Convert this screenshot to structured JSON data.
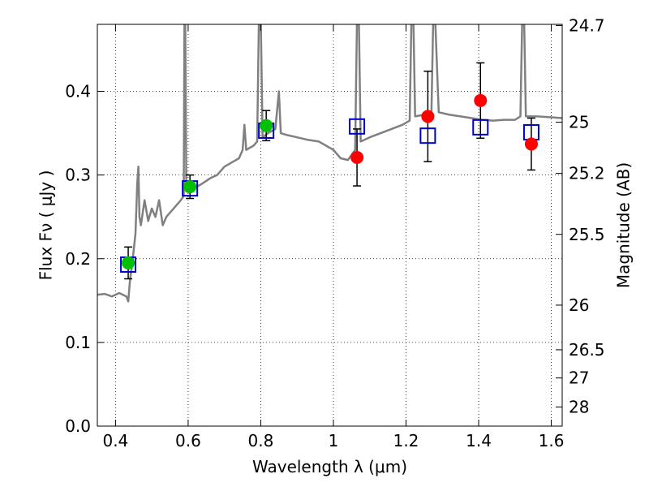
{
  "chart_data": {
    "type": "scatter",
    "x_axis": {
      "label": "Wavelength  λ (μm)",
      "range": [
        0.35,
        1.63
      ],
      "ticks": [
        0.4,
        0.6,
        0.8,
        1.0,
        1.2,
        1.4,
        1.6
      ],
      "tick_labels": [
        "0.4",
        "0.6",
        "0.8",
        "1",
        "1.2",
        "1.4",
        "1.6"
      ]
    },
    "y_axis_left": {
      "label": "Flux  Fν  ( μJy )",
      "range": [
        0.0,
        0.48
      ],
      "ticks": [
        0.0,
        0.1,
        0.2,
        0.3,
        0.4
      ],
      "tick_labels": [
        "0.0",
        "0.1",
        "0.2",
        "0.3",
        "0.4"
      ]
    },
    "y_axis_right": {
      "label": "Magnitude (AB)",
      "ticks": [
        24.7,
        25,
        25.2,
        25.5,
        26,
        26.5,
        27,
        28
      ],
      "tick_labels": [
        "24.7",
        "25",
        "25.2",
        "25.5",
        "26",
        "26.5",
        "27",
        "28"
      ]
    },
    "grid": true,
    "colors": {
      "spectrum": "#808080",
      "optical_points": "#00c000",
      "nir_points": "#ff0000",
      "model_squares": "#0000cc",
      "error_bars": "#000000"
    },
    "series": [
      {
        "style": "line",
        "points": [
          [
            0.35,
            0.157
          ],
          [
            0.37,
            0.158
          ],
          [
            0.39,
            0.155
          ],
          [
            0.41,
            0.159
          ],
          [
            0.43,
            0.155
          ],
          [
            0.435,
            0.149
          ],
          [
            0.44,
            0.175
          ],
          [
            0.445,
            0.19
          ],
          [
            0.45,
            0.21
          ],
          [
            0.455,
            0.23
          ],
          [
            0.46,
            0.29
          ],
          [
            0.463,
            0.31
          ],
          [
            0.466,
            0.25
          ],
          [
            0.47,
            0.24
          ],
          [
            0.48,
            0.27
          ],
          [
            0.49,
            0.245
          ],
          [
            0.5,
            0.26
          ],
          [
            0.51,
            0.25
          ],
          [
            0.52,
            0.27
          ],
          [
            0.53,
            0.24
          ],
          [
            0.54,
            0.25
          ],
          [
            0.55,
            0.255
          ],
          [
            0.56,
            0.26
          ],
          [
            0.57,
            0.265
          ],
          [
            0.58,
            0.27
          ],
          [
            0.588,
            0.275
          ],
          [
            0.59,
            0.49
          ],
          [
            0.592,
            0.49
          ],
          [
            0.595,
            0.28
          ],
          [
            0.6,
            0.281
          ],
          [
            0.62,
            0.285
          ],
          [
            0.64,
            0.29
          ],
          [
            0.66,
            0.296
          ],
          [
            0.68,
            0.3
          ],
          [
            0.7,
            0.31
          ],
          [
            0.72,
            0.315
          ],
          [
            0.74,
            0.32
          ],
          [
            0.75,
            0.33
          ],
          [
            0.755,
            0.36
          ],
          [
            0.76,
            0.33
          ],
          [
            0.78,
            0.335
          ],
          [
            0.79,
            0.34
          ],
          [
            0.795,
            0.49
          ],
          [
            0.8,
            0.49
          ],
          [
            0.805,
            0.345
          ],
          [
            0.82,
            0.35
          ],
          [
            0.84,
            0.355
          ],
          [
            0.85,
            0.4
          ],
          [
            0.855,
            0.35
          ],
          [
            0.87,
            0.348
          ],
          [
            0.9,
            0.345
          ],
          [
            0.93,
            0.342
          ],
          [
            0.96,
            0.34
          ],
          [
            0.98,
            0.335
          ],
          [
            1.0,
            0.33
          ],
          [
            1.02,
            0.32
          ],
          [
            1.04,
            0.318
          ],
          [
            1.06,
            0.33
          ],
          [
            1.065,
            0.49
          ],
          [
            1.07,
            0.49
          ],
          [
            1.075,
            0.34
          ],
          [
            1.1,
            0.345
          ],
          [
            1.13,
            0.35
          ],
          [
            1.16,
            0.355
          ],
          [
            1.19,
            0.36
          ],
          [
            1.21,
            0.365
          ],
          [
            1.215,
            0.49
          ],
          [
            1.22,
            0.49
          ],
          [
            1.225,
            0.37
          ],
          [
            1.25,
            0.372
          ],
          [
            1.27,
            0.373
          ],
          [
            1.275,
            0.49
          ],
          [
            1.28,
            0.49
          ],
          [
            1.29,
            0.375
          ],
          [
            1.32,
            0.372
          ],
          [
            1.35,
            0.37
          ],
          [
            1.38,
            0.368
          ],
          [
            1.41,
            0.366
          ],
          [
            1.44,
            0.365
          ],
          [
            1.47,
            0.366
          ],
          [
            1.5,
            0.366
          ],
          [
            1.515,
            0.37
          ],
          [
            1.52,
            0.49
          ],
          [
            1.525,
            0.49
          ],
          [
            1.53,
            0.37
          ],
          [
            1.56,
            0.37
          ],
          [
            1.6,
            0.369
          ],
          [
            1.63,
            0.368
          ]
        ]
      },
      {
        "style": "circle",
        "color": "#00c000",
        "points": [
          {
            "x": 0.435,
            "y": 0.195,
            "err": 0.019
          },
          {
            "x": 0.605,
            "y": 0.286,
            "err": 0.014
          },
          {
            "x": 0.815,
            "y": 0.359,
            "err": 0.018
          }
        ]
      },
      {
        "style": "circle",
        "color": "#ff0000",
        "points": [
          {
            "x": 1.065,
            "y": 0.321,
            "err": 0.034
          },
          {
            "x": 1.26,
            "y": 0.37,
            "err": 0.054
          },
          {
            "x": 1.405,
            "y": 0.389,
            "err": 0.045
          },
          {
            "x": 1.545,
            "y": 0.337,
            "err": 0.031
          }
        ]
      },
      {
        "style": "square",
        "color": "#0000cc",
        "points": [
          {
            "x": 0.435,
            "y": 0.193
          },
          {
            "x": 0.605,
            "y": 0.284
          },
          {
            "x": 0.815,
            "y": 0.353
          },
          {
            "x": 1.065,
            "y": 0.358
          },
          {
            "x": 1.26,
            "y": 0.347
          },
          {
            "x": 1.405,
            "y": 0.357
          },
          {
            "x": 1.545,
            "y": 0.351
          }
        ]
      }
    ]
  }
}
